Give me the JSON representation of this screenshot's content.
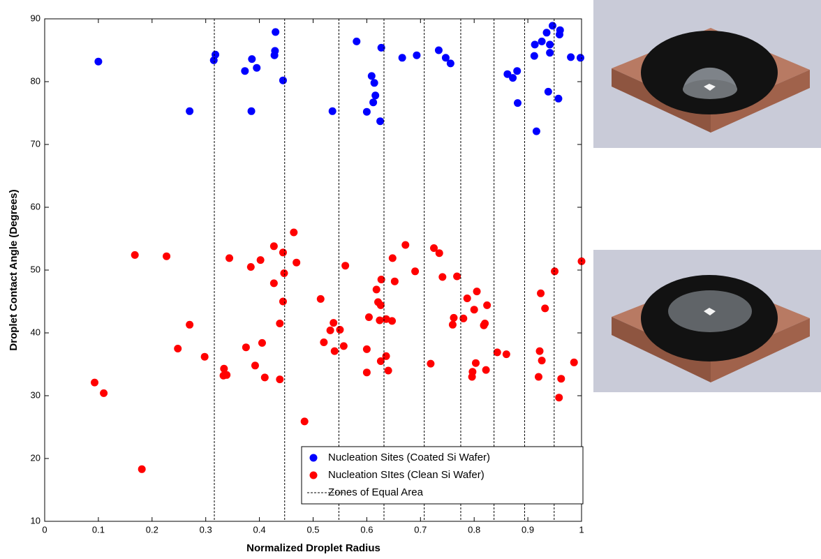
{
  "chart_data": {
    "type": "scatter",
    "x_label": "Normalized Droplet Radius",
    "y_label": "Droplet Contact Angle (Degrees)",
    "xlim": [
      0,
      1
    ],
    "ylim": [
      10,
      90
    ],
    "xticks": [
      0,
      0.1,
      0.2,
      0.3,
      0.4,
      0.5,
      0.6,
      0.7,
      0.8,
      0.9,
      1
    ],
    "yticks": [
      10,
      20,
      30,
      40,
      50,
      60,
      70,
      80,
      90
    ],
    "legend": "lower right",
    "series": [
      {
        "name": "Nucleation Sites (Coated Si Wafer)",
        "color": "#0000ff",
        "x": [
          0.1,
          0.27,
          0.315,
          0.318,
          0.373,
          0.385,
          0.386,
          0.395,
          0.428,
          0.429,
          0.43,
          0.444,
          0.536,
          0.581,
          0.6,
          0.609,
          0.612,
          0.614,
          0.616,
          0.625,
          0.627,
          0.666,
          0.693,
          0.734,
          0.747,
          0.756,
          0.862,
          0.872,
          0.88,
          0.881,
          0.912,
          0.913,
          0.916,
          0.926,
          0.935,
          0.938,
          0.941,
          0.941,
          0.946,
          0.957,
          0.959,
          0.96,
          0.98,
          0.998
        ],
        "values": [
          83.2,
          75.3,
          83.4,
          84.3,
          81.7,
          75.3,
          83.6,
          82.2,
          84.2,
          84.9,
          87.9,
          80.2,
          75.3,
          86.4,
          75.2,
          80.9,
          76.7,
          79.8,
          77.8,
          73.7,
          85.4,
          83.8,
          84.2,
          85.0,
          83.8,
          82.9,
          81.2,
          80.6,
          81.7,
          76.6,
          84.1,
          85.9,
          72.1,
          86.4,
          87.8,
          78.4,
          84.6,
          85.9,
          88.9,
          77.3,
          87.5,
          88.2,
          83.9,
          83.8
        ]
      },
      {
        "name": "Nucleation SItes (Clean Si Wafer)",
        "color": "#ff0000",
        "x": [
          0.093,
          0.11,
          0.168,
          0.181,
          0.227,
          0.248,
          0.27,
          0.298,
          0.333,
          0.334,
          0.339,
          0.344,
          0.375,
          0.384,
          0.392,
          0.402,
          0.405,
          0.41,
          0.427,
          0.427,
          0.438,
          0.438,
          0.444,
          0.444,
          0.446,
          0.464,
          0.469,
          0.484,
          0.514,
          0.52,
          0.532,
          0.538,
          0.54,
          0.55,
          0.557,
          0.56,
          0.6,
          0.6,
          0.604,
          0.618,
          0.621,
          0.624,
          0.626,
          0.626,
          0.627,
          0.636,
          0.636,
          0.64,
          0.647,
          0.648,
          0.652,
          0.672,
          0.69,
          0.719,
          0.725,
          0.735,
          0.741,
          0.76,
          0.762,
          0.768,
          0.78,
          0.787,
          0.796,
          0.797,
          0.8,
          0.803,
          0.805,
          0.818,
          0.82,
          0.822,
          0.824,
          0.843,
          0.86,
          0.92,
          0.922,
          0.924,
          0.926,
          0.932,
          0.95,
          0.958,
          0.962,
          0.986,
          1.0
        ],
        "values": [
          32.1,
          30.4,
          52.4,
          18.3,
          52.2,
          37.5,
          41.3,
          36.2,
          33.2,
          34.3,
          33.3,
          51.9,
          37.7,
          50.5,
          34.8,
          51.6,
          38.4,
          32.9,
          53.8,
          47.9,
          41.5,
          32.6,
          52.8,
          45.0,
          49.5,
          56.0,
          51.2,
          25.9,
          45.4,
          38.5,
          40.4,
          41.6,
          37.1,
          40.5,
          37.9,
          50.7,
          37.4,
          33.7,
          42.5,
          46.9,
          44.9,
          42.0,
          44.4,
          35.5,
          48.5,
          36.3,
          42.2,
          34.0,
          41.9,
          51.9,
          48.2,
          54.0,
          49.8,
          35.1,
          53.5,
          52.7,
          48.9,
          41.3,
          42.4,
          49.0,
          42.3,
          45.5,
          33.0,
          33.8,
          43.7,
          35.2,
          46.6,
          41.2,
          41.5,
          34.1,
          44.4,
          36.9,
          36.6,
          33.0,
          37.1,
          46.3,
          35.6,
          43.9,
          49.8,
          29.7,
          32.7,
          35.3,
          51.4
        ]
      },
      {
        "name": "Zones of Equal Area",
        "color": "#000000",
        "x": [
          0.316,
          0.447,
          0.548,
          0.632,
          0.707,
          0.775,
          0.837,
          0.894,
          0.949,
          1.0
        ]
      }
    ]
  }
}
